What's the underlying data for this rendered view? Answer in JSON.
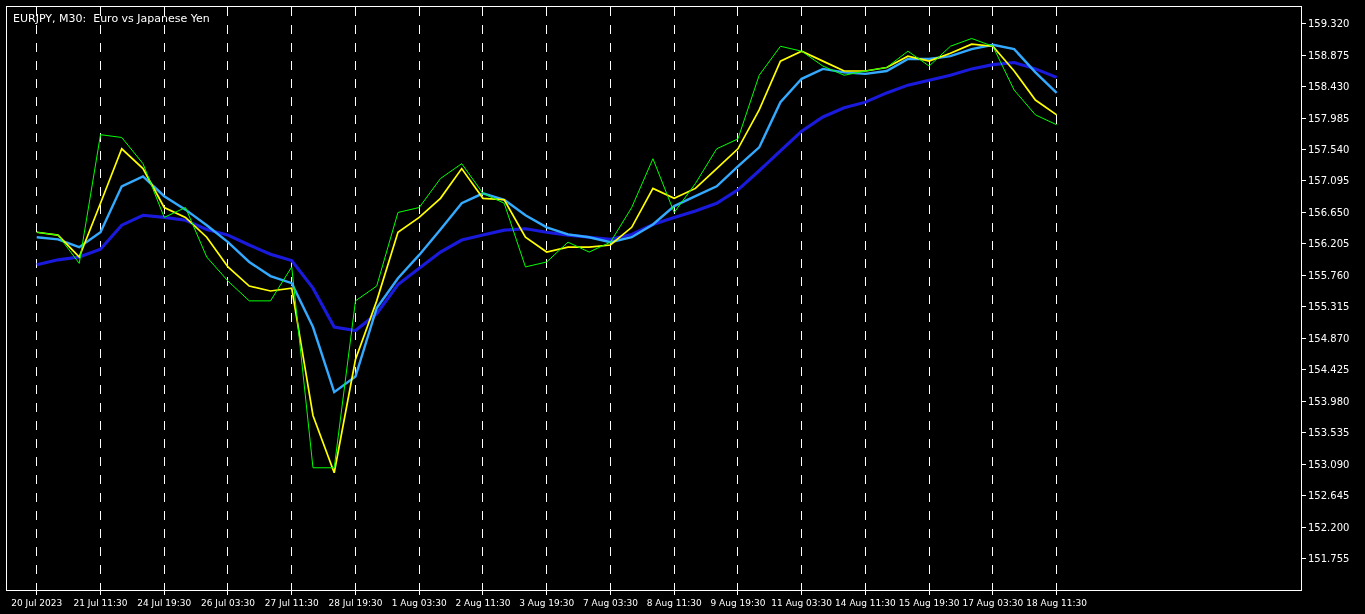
{
  "chart_data": {
    "type": "line",
    "title": "EURJPY, M30:  Euro vs Japanese Yen",
    "categories": [
      "20 Jul 2023",
      null,
      null,
      "21 Jul 11:30",
      null,
      null,
      "24 Jul 19:30",
      null,
      null,
      "26 Jul 03:30",
      null,
      null,
      "27 Jul 11:30",
      null,
      null,
      "28 Jul 19:30",
      null,
      null,
      "1 Aug 03:30",
      null,
      null,
      "2 Aug 11:30",
      null,
      null,
      "3 Aug 19:30",
      null,
      null,
      "7 Aug 03:30",
      null,
      null,
      "8 Aug 11:30",
      null,
      null,
      "9 Aug 19:30",
      null,
      null,
      "11 Aug 03:30",
      null,
      null,
      "14 Aug 11:30",
      null,
      null,
      "15 Aug 19:30",
      null,
      null,
      "17 Aug 03:30",
      null,
      null,
      "18 Aug 11:30",
      null,
      null,
      null,
      null,
      null,
      null,
      null,
      null,
      null,
      null,
      null
    ],
    "series": [
      {
        "color": "#1a1adc",
        "values": [
          155.91,
          155.98,
          156.02,
          156.13,
          156.47,
          156.61,
          156.58,
          156.54,
          156.41,
          156.33,
          156.19,
          156.06,
          155.97,
          155.58,
          155.03,
          154.98,
          155.22,
          155.63,
          155.86,
          156.09,
          156.26,
          156.33,
          156.4,
          156.42,
          156.37,
          156.33,
          156.3,
          156.27,
          156.34,
          156.48,
          156.58,
          156.67,
          156.78,
          156.97,
          157.24,
          157.52,
          157.8,
          158.0,
          158.13,
          158.21,
          158.34,
          158.45,
          158.52,
          158.59,
          158.68,
          158.74,
          158.77,
          158.68,
          158.56,
          null,
          null,
          null,
          null,
          null,
          null,
          null,
          null,
          null,
          null,
          null
        ]
      },
      {
        "color": "#33aaff",
        "values": [
          156.3,
          156.27,
          156.16,
          156.37,
          157.02,
          157.16,
          156.88,
          156.69,
          156.47,
          156.23,
          155.95,
          155.75,
          155.65,
          155.03,
          154.11,
          154.33,
          155.3,
          155.72,
          156.05,
          156.41,
          156.78,
          156.92,
          156.83,
          156.61,
          156.44,
          156.34,
          156.3,
          156.23,
          156.3,
          156.48,
          156.74,
          156.88,
          157.02,
          157.3,
          157.57,
          158.21,
          158.54,
          158.68,
          158.63,
          158.61,
          158.65,
          158.82,
          158.82,
          158.86,
          158.96,
          159.02,
          158.96,
          158.63,
          158.34,
          null,
          null,
          null,
          null,
          null,
          null,
          null,
          null,
          null,
          null,
          null
        ]
      },
      {
        "color": "#ffff00",
        "values": [
          156.37,
          156.33,
          156.02,
          156.78,
          157.55,
          157.27,
          156.72,
          156.58,
          156.3,
          155.88,
          155.61,
          155.54,
          155.58,
          153.78,
          152.97,
          154.57,
          155.4,
          156.37,
          156.58,
          156.85,
          157.27,
          156.85,
          156.83,
          156.3,
          156.09,
          156.16,
          156.16,
          156.19,
          156.44,
          156.99,
          156.85,
          156.99,
          157.27,
          157.55,
          158.1,
          158.79,
          158.93,
          158.79,
          158.65,
          158.65,
          158.7,
          158.86,
          158.79,
          158.9,
          159.03,
          159.0,
          158.65,
          158.24,
          158.03,
          null,
          null,
          null,
          null,
          null,
          null,
          null,
          null,
          null,
          null,
          null
        ]
      },
      {
        "color": "#00ff00",
        "values": [
          156.37,
          156.33,
          155.93,
          157.75,
          157.71,
          157.34,
          156.58,
          156.72,
          156.02,
          155.68,
          155.4,
          155.4,
          155.88,
          153.04,
          153.04,
          155.4,
          155.61,
          156.65,
          156.72,
          157.13,
          157.34,
          156.92,
          156.78,
          155.88,
          155.95,
          156.23,
          156.09,
          156.23,
          156.72,
          157.41,
          156.65,
          157.06,
          157.55,
          157.69,
          158.59,
          159.0,
          158.93,
          158.72,
          158.59,
          158.65,
          158.7,
          158.93,
          158.72,
          159.0,
          159.11,
          159.0,
          158.38,
          158.03,
          157.89,
          null,
          null,
          null,
          null,
          null,
          null,
          null,
          null,
          null,
          null,
          null
        ]
      }
    ],
    "ylim": [
      151.312,
      159.555
    ],
    "yticks": [
      151.755,
      {
        "value": 152.2,
        "label": "152.200"
      },
      152.645,
      {
        "value": 153.09,
        "label": "153.090"
      },
      153.535,
      {
        "value": 153.98,
        "label": "153.980"
      },
      154.425,
      {
        "value": 154.87,
        "label": "154.870"
      },
      155.315,
      {
        "value": 155.76,
        "label": "155.760"
      },
      156.205,
      {
        "value": 156.65,
        "label": "156.650"
      },
      157.095,
      {
        "value": 157.54,
        "label": "157.540"
      },
      157.985,
      {
        "value": 158.43,
        "label": "158.430"
      },
      158.875,
      {
        "value": 159.32,
        "label": "159.320"
      }
    ],
    "grid": "x",
    "marker": "none",
    "line_style": "solid"
  }
}
